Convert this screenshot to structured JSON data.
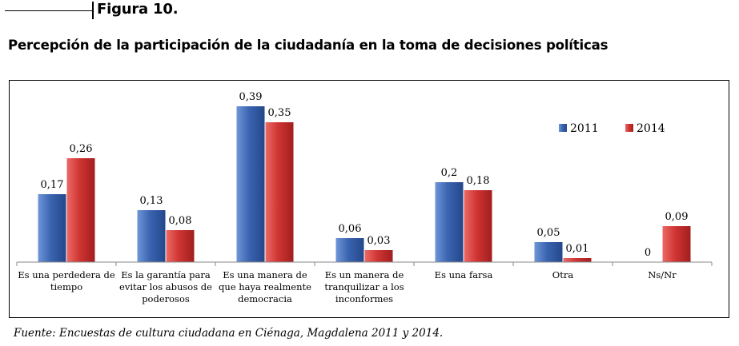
{
  "figure": {
    "label": "Figura 10."
  },
  "title": "Percepción de la participación de la ciudadanía en la toma de decisiones políticas",
  "source": "Fuente: Encuestas de cultura ciudadana en Ciénaga, Magdalena 2011 y 2014.",
  "colors": {
    "s2011": "#3a64b0",
    "s2014": "#cf3533"
  },
  "chart_data": {
    "type": "bar",
    "title": "Percepción de la participación de la ciudadanía en la toma de decisiones políticas",
    "xlabel": "",
    "ylabel": "",
    "ylim": [
      0,
      0.45
    ],
    "grid": false,
    "legend_position": "top-right",
    "categories": [
      [
        "Es una perdedera de",
        "tiempo"
      ],
      [
        "Es la garantía para",
        "evitar los abusos de",
        "poderosos"
      ],
      [
        "Es una manera de",
        "que haya realmente",
        "democracia"
      ],
      [
        "Es un manera de",
        "tranquilizar a los",
        "inconformes"
      ],
      [
        "Es una farsa"
      ],
      [
        "Otra"
      ],
      [
        "Ns/Nr"
      ]
    ],
    "series": [
      {
        "name": "2011",
        "values": [
          0.17,
          0.13,
          0.39,
          0.06,
          0.2,
          0.05,
          0
        ],
        "labels": [
          "0,17",
          "0,13",
          "0,39",
          "0,06",
          "0,2",
          "0,05",
          "0"
        ]
      },
      {
        "name": "2014",
        "values": [
          0.26,
          0.08,
          0.35,
          0.03,
          0.18,
          0.01,
          0.09
        ],
        "labels": [
          "0,26",
          "0,08",
          "0,35",
          "0,03",
          "0,18",
          "0,01",
          "0,09"
        ]
      }
    ]
  }
}
